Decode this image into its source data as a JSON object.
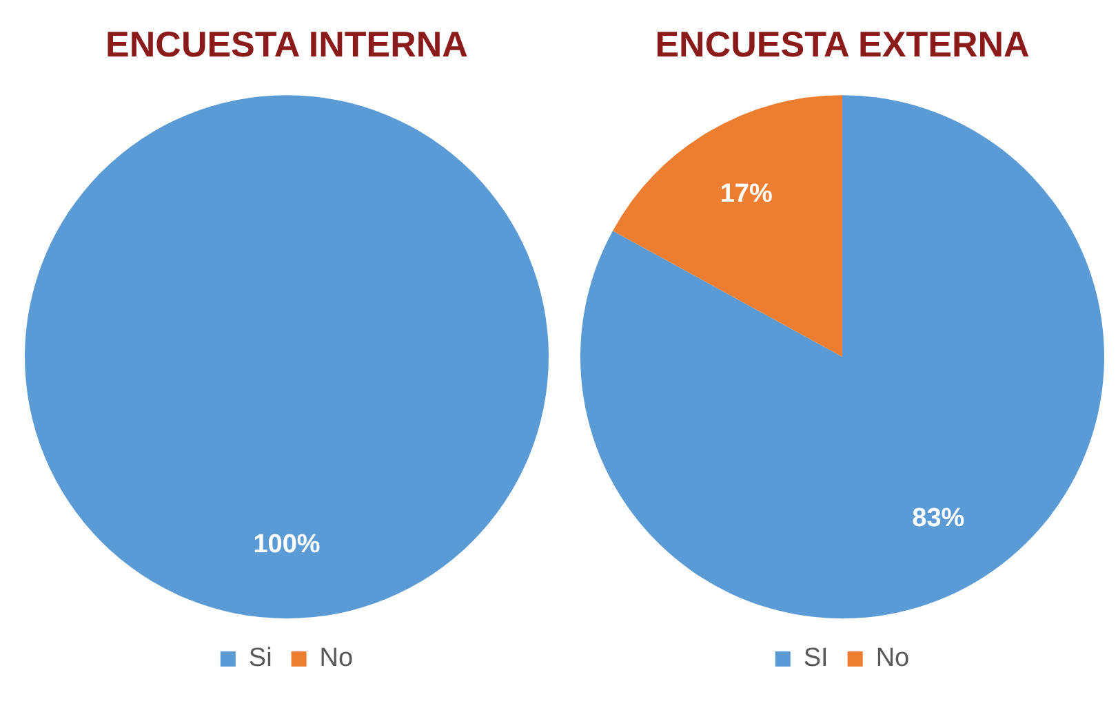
{
  "chart_data": [
    {
      "type": "pie",
      "title": "ENCUESTA INTERNA",
      "categories": [
        "Si",
        "No"
      ],
      "values": [
        100,
        0
      ],
      "colors": [
        "#5b9bd5",
        "#ed7d31"
      ],
      "value_labels": [
        "100%",
        null
      ],
      "legend": "bottom"
    },
    {
      "type": "pie",
      "title": "ENCUESTA EXTERNA",
      "categories": [
        "SI",
        "No"
      ],
      "values": [
        83,
        17
      ],
      "colors": [
        "#5b9bd5",
        "#ed7d31"
      ],
      "value_labels": [
        "83%",
        "17%"
      ],
      "legend": "bottom"
    }
  ]
}
